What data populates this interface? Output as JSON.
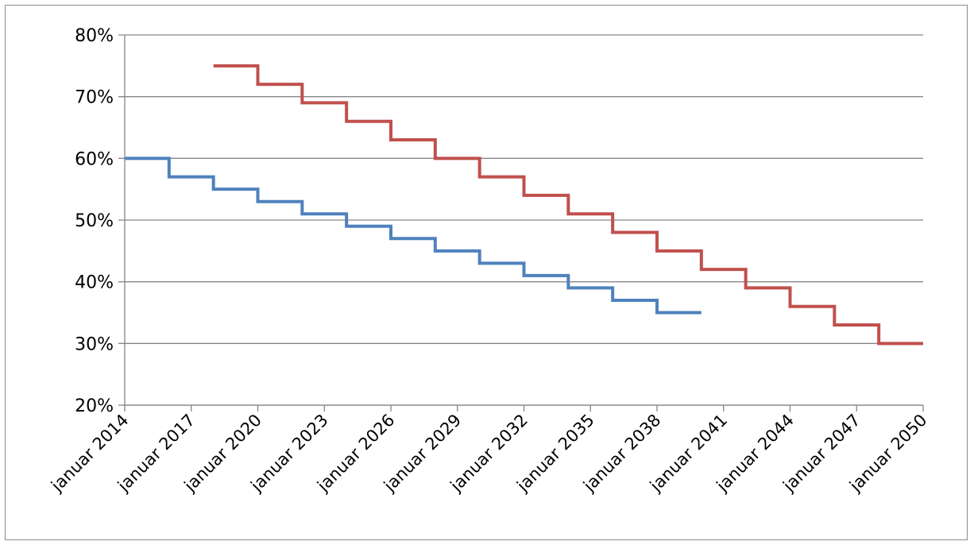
{
  "chart_data": {
    "type": "line",
    "title": "",
    "xlabel": "",
    "ylabel": "",
    "x_tick_labels": [
      "januar 2014",
      "januar 2017",
      "januar 2020",
      "januar 2023",
      "januar 2026",
      "januar 2029",
      "januar 2032",
      "januar 2035",
      "januar 2038",
      "januar 2041",
      "januar 2044",
      "januar 2047",
      "januar 2050"
    ],
    "y_tick_labels": [
      "20%",
      "30%",
      "40%",
      "50%",
      "60%",
      "70%",
      "80%"
    ],
    "xlim": [
      "2014-01",
      "2050-01"
    ],
    "ylim": [
      20,
      80
    ],
    "y_unit": "%",
    "grid": "horizontal",
    "legend": "none",
    "step": "post",
    "series": [
      {
        "color": "#4f81bd",
        "points": [
          {
            "x": "2014-01",
            "y": 60
          },
          {
            "x": "2016-01",
            "y": 57
          },
          {
            "x": "2018-01",
            "y": 55
          },
          {
            "x": "2020-01",
            "y": 53
          },
          {
            "x": "2022-01",
            "y": 51
          },
          {
            "x": "2024-01",
            "y": 49
          },
          {
            "x": "2026-01",
            "y": 47
          },
          {
            "x": "2028-01",
            "y": 45
          },
          {
            "x": "2030-01",
            "y": 43
          },
          {
            "x": "2032-01",
            "y": 41
          },
          {
            "x": "2034-01",
            "y": 39
          },
          {
            "x": "2036-01",
            "y": 37
          },
          {
            "x": "2038-01",
            "y": 35
          },
          {
            "x": "2040-01",
            "y": 35
          }
        ]
      },
      {
        "color": "#c0504d",
        "points": [
          {
            "x": "2018-01",
            "y": 75
          },
          {
            "x": "2020-01",
            "y": 72
          },
          {
            "x": "2022-01",
            "y": 69
          },
          {
            "x": "2024-01",
            "y": 66
          },
          {
            "x": "2026-01",
            "y": 63
          },
          {
            "x": "2028-01",
            "y": 60
          },
          {
            "x": "2030-01",
            "y": 57
          },
          {
            "x": "2032-01",
            "y": 54
          },
          {
            "x": "2034-01",
            "y": 51
          },
          {
            "x": "2036-01",
            "y": 48
          },
          {
            "x": "2038-01",
            "y": 45
          },
          {
            "x": "2040-01",
            "y": 42
          },
          {
            "x": "2042-01",
            "y": 39
          },
          {
            "x": "2044-01",
            "y": 36
          },
          {
            "x": "2046-01",
            "y": 33
          },
          {
            "x": "2048-01",
            "y": 30
          },
          {
            "x": "2050-01",
            "y": 30
          }
        ]
      }
    ]
  }
}
